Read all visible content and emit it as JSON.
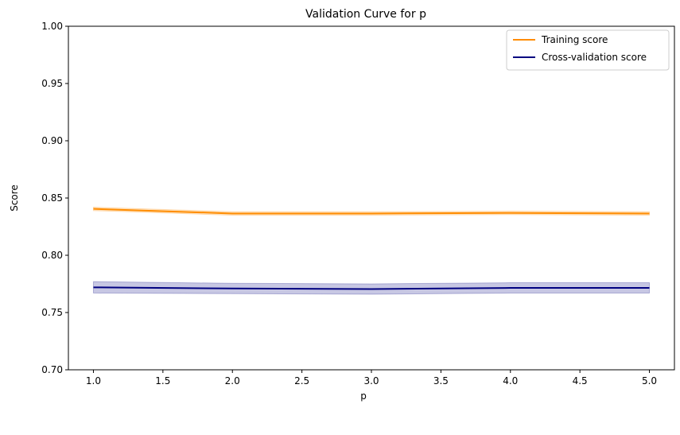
{
  "chart_data": {
    "type": "line",
    "title": "Validation Curve for p",
    "xlabel": "p",
    "ylabel": "Score",
    "xlim": [
      0.82,
      5.18
    ],
    "ylim": [
      0.7,
      1.0
    ],
    "x_ticks": [
      1.0,
      1.5,
      2.0,
      2.5,
      3.0,
      3.5,
      4.0,
      4.5,
      5.0
    ],
    "y_ticks": [
      0.7,
      0.75,
      0.8,
      0.85,
      0.9,
      0.95,
      1.0
    ],
    "grid": false,
    "legend_position": "top-right",
    "x": [
      1,
      2,
      3,
      4,
      5
    ],
    "series": [
      {
        "name": "Training score",
        "color": "#ff8c00",
        "values": [
          0.8405,
          0.8365,
          0.8365,
          0.837,
          0.8365
        ],
        "band_lower": [
          0.839,
          0.835,
          0.835,
          0.8355,
          0.835
        ],
        "band_upper": [
          0.842,
          0.838,
          0.838,
          0.8385,
          0.838
        ]
      },
      {
        "name": "Cross-validation score",
        "color": "#000080",
        "values": [
          0.772,
          0.771,
          0.7705,
          0.7715,
          0.7715
        ],
        "band_lower": [
          0.767,
          0.7665,
          0.766,
          0.767,
          0.767
        ],
        "band_upper": [
          0.777,
          0.7755,
          0.775,
          0.776,
          0.776
        ]
      }
    ]
  }
}
